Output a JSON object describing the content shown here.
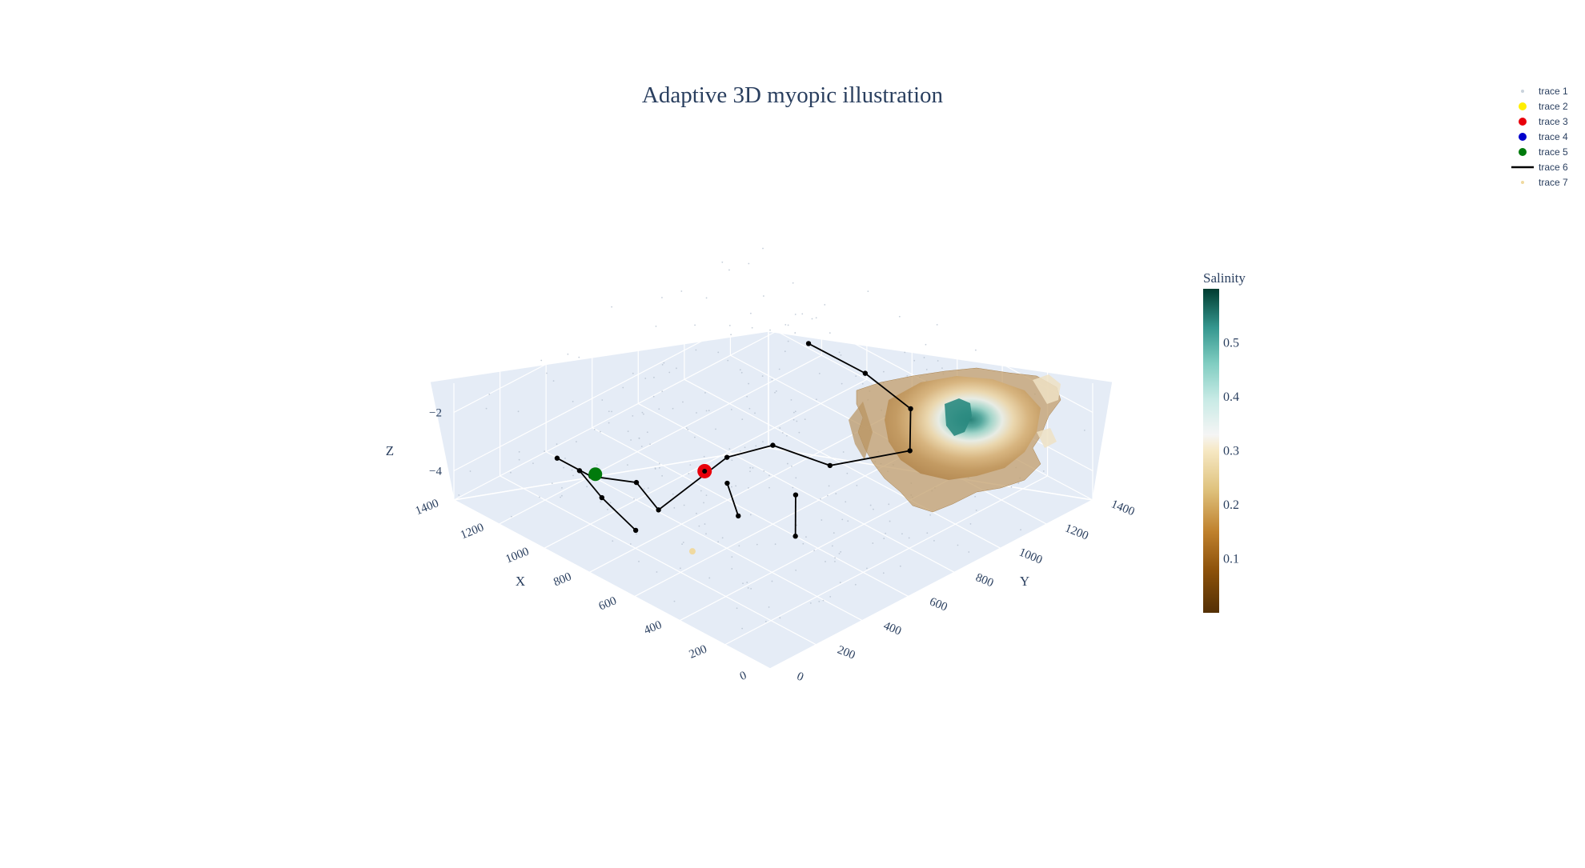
{
  "chart_data": {
    "type": "scatter3d",
    "title": "Adaptive 3D myopic illustration",
    "scene": {
      "background": "#e5ecf6",
      "grid": true,
      "x_axis": {
        "label": "X",
        "range": [
          0,
          1400
        ],
        "ticks": [
          "0",
          "200",
          "400",
          "600",
          "800",
          "1000",
          "1200",
          "1400"
        ]
      },
      "y_axis": {
        "label": "Y",
        "range": [
          0,
          1400
        ],
        "ticks": [
          "0",
          "200",
          "400",
          "600",
          "800",
          "1000",
          "1200",
          "1400"
        ]
      },
      "z_axis": {
        "label": "Z",
        "range": [
          -5,
          -1
        ],
        "ticks": [
          "−4",
          "−2"
        ]
      }
    },
    "colorbar": {
      "title": "Salinity",
      "colorscale": "BrBG",
      "range": [
        0.0,
        0.6
      ],
      "ticks": [
        "0.1",
        "0.2",
        "0.3",
        "0.4",
        "0.5"
      ],
      "tick_values": [
        0.1,
        0.2,
        0.3,
        0.4,
        0.5
      ]
    },
    "legend": {
      "position": "top-right",
      "items": [
        {
          "name": "trace 1",
          "color": "#c9d2dc",
          "symbol": "dot-small"
        },
        {
          "name": "trace 2",
          "color": "#ffee00",
          "symbol": "dot"
        },
        {
          "name": "trace 3",
          "color": "#e8000b",
          "symbol": "dot"
        },
        {
          "name": "trace 4",
          "color": "#0000cc",
          "symbol": "dot"
        },
        {
          "name": "trace 5",
          "color": "#007a0c",
          "symbol": "dot"
        },
        {
          "name": "trace 6",
          "color": "#000000",
          "symbol": "line"
        },
        {
          "name": "trace 7",
          "color": "#f0d9a0",
          "symbol": "dot-small"
        }
      ]
    },
    "series": [
      {
        "name": "trace 6",
        "mode": "lines+markers",
        "color": "#000000",
        "points": [
          {
            "x": 1300,
            "y": 350,
            "z": -4.6
          },
          {
            "x": 1150,
            "y": 350,
            "z": -4.6
          },
          {
            "x": 1000,
            "y": 400,
            "z": -4.4
          },
          {
            "x": 800,
            "y": 300,
            "z": -4.1
          },
          {
            "x": 650,
            "y": 450,
            "z": -2.3
          },
          {
            "x": 600,
            "y": 600,
            "z": -2.3
          },
          {
            "x": 500,
            "y": 750,
            "z": -3.2
          },
          {
            "x": 350,
            "y": 950,
            "z": -2.9
          },
          {
            "x": 500,
            "y": 1100,
            "z": -2.7
          },
          {
            "x": 650,
            "y": 1050,
            "z": -1.9
          },
          {
            "x": 850,
            "y": 1000,
            "z": -1.5
          }
        ]
      },
      {
        "name": "trace 6 segment",
        "mode": "lines+markers",
        "color": "#000000",
        "points": [
          {
            "x": 1150,
            "y": 300,
            "z": -4.2
          },
          {
            "x": 1000,
            "y": 250,
            "z": -4.3
          },
          {
            "x": 850,
            "y": 250,
            "z": -4.8
          }
        ]
      },
      {
        "name": "trace 6 segment",
        "mode": "lines+markers",
        "color": "#000000",
        "points": [
          {
            "x": 700,
            "y": 500,
            "z": -3.6
          },
          {
            "x": 600,
            "y": 450,
            "z": -4.1
          }
        ]
      },
      {
        "name": "trace 6 segment",
        "mode": "lines+markers",
        "color": "#000000",
        "points": [
          {
            "x": 550,
            "y": 650,
            "z": -4.0
          },
          {
            "x": 500,
            "y": 600,
            "z": -5.0
          }
        ]
      },
      {
        "name": "trace 3",
        "mode": "markers",
        "color": "#e8000b",
        "points": [
          {
            "x": 800,
            "y": 500,
            "z": -3.6
          }
        ]
      },
      {
        "name": "trace 5",
        "mode": "markers",
        "color": "#007a0c",
        "points": [
          {
            "x": 1100,
            "y": 320,
            "z": -4.2
          }
        ]
      },
      {
        "name": "trace 7",
        "mode": "markers",
        "color": "#f0d9a0",
        "points": [
          {
            "x": 650,
            "y": 300,
            "z": -4.9
          }
        ]
      }
    ],
    "surface": {
      "name": "salinity isosurface",
      "location": {
        "x_range": [
          100,
          700
        ],
        "y_range": [
          900,
          1400
        ],
        "z_range": [
          -4.5,
          -1.5
        ]
      },
      "core_value": 0.45,
      "edge_value": 0.15
    }
  }
}
